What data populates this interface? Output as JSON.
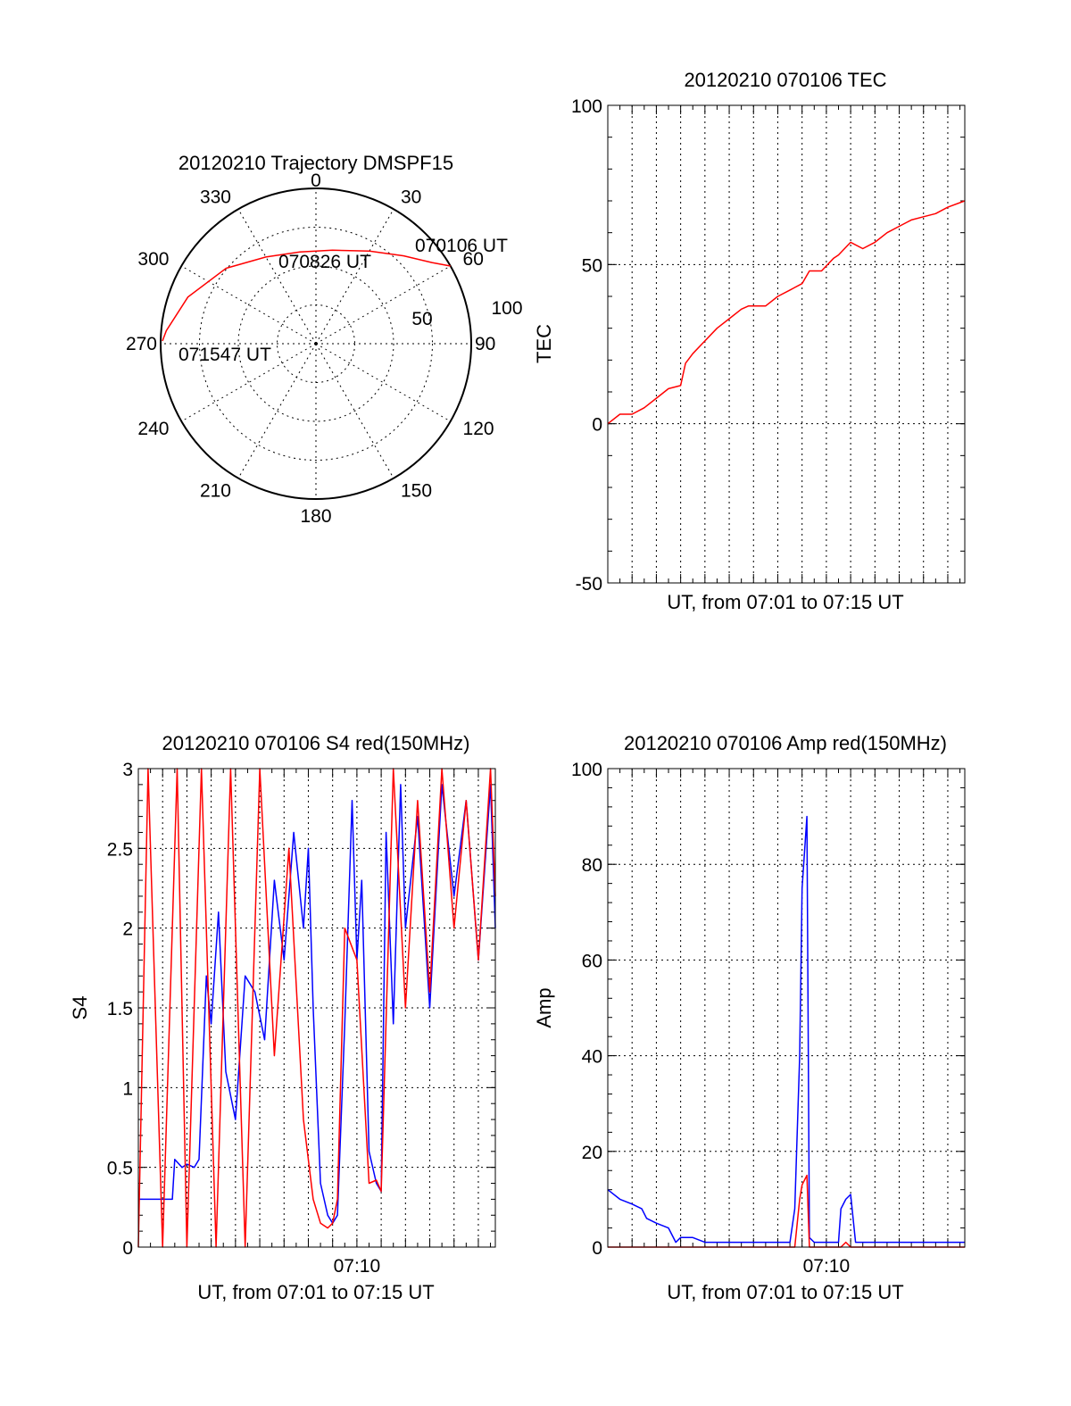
{
  "chart_data": [
    {
      "type": "polar",
      "title": "20120210 Trajectory DMSPF15",
      "azimuth_labels": [
        "0",
        "30",
        "60",
        "90",
        "120",
        "150",
        "180",
        "210",
        "240",
        "270",
        "300",
        "330"
      ],
      "radial_tick_labels": [
        "50",
        "100"
      ],
      "radial_range": [
        0,
        100
      ],
      "grid": true,
      "trajectory_color": "#ff0000",
      "annotations": [
        "070106 UT",
        "070826 UT",
        "071547 UT"
      ],
      "trajectory": [
        {
          "az": 60,
          "elev": 0
        },
        {
          "az": 55,
          "elev": 8
        },
        {
          "az": 45,
          "elev": 18
        },
        {
          "az": 30,
          "elev": 28
        },
        {
          "az": 10,
          "elev": 35
        },
        {
          "az": 350,
          "elev": 36
        },
        {
          "az": 330,
          "elev": 32
        },
        {
          "az": 310,
          "elev": 22
        },
        {
          "az": 290,
          "elev": 11
        },
        {
          "az": 275,
          "elev": 3
        },
        {
          "az": 271,
          "elev": 1
        }
      ]
    },
    {
      "type": "line",
      "title": "20120210 070106 TEC",
      "xlabel": "UT, from 07:01 to 07:15 UT",
      "ylabel": "TEC",
      "ylim": [
        -50,
        100
      ],
      "yticks": [
        "-50",
        "0",
        "50",
        "100"
      ],
      "xlim_minutes": [
        1,
        15.7
      ],
      "grid": true,
      "series": [
        {
          "color": "#ff0000",
          "x_minutes": [
            1.0,
            1.5,
            2.0,
            2.5,
            3.0,
            3.5,
            4.0,
            4.2,
            4.5,
            5.0,
            5.5,
            6.0,
            6.5,
            6.8,
            7.5,
            8.0,
            8.5,
            9.0,
            9.3,
            9.8,
            10.3,
            10.5,
            11.0,
            11.5,
            12.0,
            12.5,
            13.0,
            13.5,
            14.0,
            14.5,
            15.0,
            15.7
          ],
          "values": [
            0,
            3,
            3,
            5,
            8,
            11,
            12,
            19,
            22,
            26,
            30,
            33,
            36,
            37,
            37,
            40,
            42,
            44,
            48,
            48,
            52,
            53,
            57,
            55,
            57,
            60,
            62,
            64,
            65,
            66,
            68,
            70
          ]
        }
      ]
    },
    {
      "type": "line",
      "title": "20120210 070106 S4 red(150MHz)",
      "xlabel": "UT, from 07:01 to 07:15 UT",
      "ylabel": "S4",
      "ylim": [
        0,
        3
      ],
      "yticks": [
        "0",
        "0.5",
        "1",
        "1.5",
        "2",
        "2.5",
        "3"
      ],
      "xticks": [
        "07:10"
      ],
      "xtick_minutes": [
        10
      ],
      "xlim_minutes": [
        1,
        15.7
      ],
      "grid": true,
      "series": [
        {
          "color": "#0000ff",
          "x_minutes": [
            1.0,
            1.5,
            2.0,
            2.4,
            2.5,
            2.8,
            3.0,
            3.3,
            3.5,
            3.8,
            4.0,
            4.3,
            4.6,
            5.0,
            5.4,
            5.8,
            6.2,
            6.6,
            7.0,
            7.4,
            7.8,
            8.0,
            8.2,
            8.5,
            8.8,
            9.0,
            9.2,
            9.5,
            9.8,
            10.0,
            10.2,
            10.5,
            10.8,
            11.0,
            11.2,
            11.5,
            11.8,
            12.0,
            12.5,
            13.0,
            13.5,
            14.0,
            14.5,
            15.0,
            15.5,
            15.7
          ],
          "values": [
            0.3,
            0.3,
            0.3,
            0.3,
            0.55,
            0.5,
            0.52,
            0.5,
            0.55,
            1.7,
            1.4,
            2.1,
            1.1,
            0.8,
            1.7,
            1.6,
            1.3,
            2.3,
            1.8,
            2.6,
            2.0,
            2.5,
            1.5,
            0.4,
            0.2,
            0.15,
            0.2,
            1.4,
            2.8,
            1.8,
            2.3,
            0.6,
            0.4,
            0.35,
            2.6,
            1.4,
            2.9,
            2.0,
            2.7,
            1.5,
            2.9,
            2.2,
            2.8,
            1.8,
            2.9,
            2.0
          ]
        },
        {
          "color": "#ff0000",
          "x_minutes": [
            1.0,
            1.4,
            2.0,
            2.6,
            3.0,
            3.6,
            4.2,
            4.8,
            5.4,
            6.0,
            6.6,
            7.2,
            7.8,
            8.2,
            8.5,
            8.8,
            9.0,
            9.2,
            9.5,
            10.0,
            10.5,
            10.8,
            11.0,
            11.5,
            12.0,
            12.5,
            13.0,
            13.5,
            14.0,
            14.5,
            15.0,
            15.5,
            15.7
          ],
          "values": [
            0,
            3,
            0,
            3,
            0,
            3,
            0,
            3,
            0,
            3,
            1.2,
            2.5,
            0.8,
            0.3,
            0.15,
            0.12,
            0.15,
            0.3,
            2.0,
            1.8,
            0.4,
            0.42,
            0.35,
            3,
            1.5,
            2.8,
            1.6,
            3,
            2.0,
            2.8,
            1.8,
            3,
            2.2
          ]
        }
      ]
    },
    {
      "type": "line",
      "title": "20120210 070106 Amp red(150MHz)",
      "xlabel": "UT, from 07:01 to 07:15 UT",
      "ylabel": "Amp",
      "ylim": [
        0,
        100
      ],
      "yticks": [
        "0",
        "20",
        "40",
        "60",
        "80",
        "100"
      ],
      "xticks": [
        "07:10"
      ],
      "xtick_minutes": [
        10
      ],
      "xlim_minutes": [
        1,
        15.7
      ],
      "grid": true,
      "series": [
        {
          "color": "#0000ff",
          "x_minutes": [
            1.0,
            1.5,
            2.0,
            2.4,
            2.6,
            3.0,
            3.5,
            3.8,
            4.0,
            4.5,
            5.0,
            5.5,
            6.0,
            6.5,
            7.0,
            7.5,
            8.0,
            8.5,
            8.7,
            8.9,
            9.0,
            9.2,
            9.3,
            9.5,
            10.0,
            10.5,
            10.6,
            10.8,
            11.0,
            11.2,
            11.5,
            12.0,
            13.0,
            14.0,
            15.0,
            15.7
          ],
          "values": [
            12,
            10,
            9,
            8,
            6,
            5,
            4,
            1,
            2,
            2,
            1,
            1,
            1,
            1,
            1,
            1,
            1,
            1,
            8,
            40,
            75,
            90,
            2,
            1,
            1,
            1,
            8,
            10,
            11,
            1,
            1,
            1,
            1,
            1,
            1,
            1
          ]
        },
        {
          "color": "#ff0000",
          "x_minutes": [
            1.0,
            2.0,
            2.4,
            8.7,
            8.9,
            9.0,
            9.2,
            9.3,
            10.6,
            10.8,
            11.0,
            15.7
          ],
          "values": [
            0,
            0,
            0,
            0,
            10,
            13,
            15,
            0,
            0,
            1,
            0,
            0
          ]
        }
      ]
    }
  ]
}
